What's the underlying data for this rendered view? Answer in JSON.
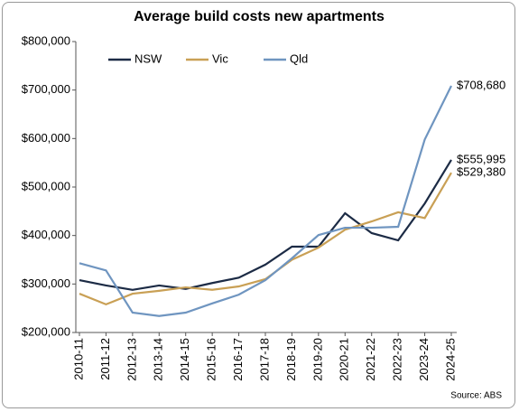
{
  "chart_data": {
    "type": "line",
    "title": "Average build costs new apartments",
    "categories": [
      "2010-11",
      "2011-12",
      "2012-13",
      "2013-14",
      "2014-15",
      "2015-16",
      "2016-17",
      "2017-18",
      "2018-19",
      "2019-20",
      "2020-21",
      "2021-22",
      "2022-23",
      "2023-24",
      "2024-25"
    ],
    "series": [
      {
        "name": "NSW",
        "color": "#1c2b45",
        "values": [
          308000,
          297000,
          288000,
          297000,
          290000,
          302000,
          313000,
          340000,
          377000,
          377000,
          446000,
          405000,
          390000,
          466000,
          555995
        ],
        "value_labels": [
          null,
          null,
          null,
          null,
          null,
          null,
          null,
          null,
          null,
          null,
          null,
          null,
          null,
          null,
          "$555,995"
        ]
      },
      {
        "name": "Vic",
        "color": "#c9a055",
        "values": [
          280000,
          258000,
          280000,
          286000,
          293000,
          288000,
          295000,
          310000,
          350000,
          375000,
          412000,
          429000,
          448000,
          436000,
          529380
        ],
        "value_labels": [
          null,
          null,
          null,
          null,
          null,
          null,
          null,
          null,
          null,
          null,
          null,
          null,
          null,
          null,
          "$529,380"
        ]
      },
      {
        "name": "Qld",
        "color": "#6f95c0",
        "values": [
          343000,
          328000,
          241000,
          234000,
          241000,
          260000,
          278000,
          308000,
          353000,
          401000,
          416000,
          416000,
          418000,
          598000,
          708680
        ],
        "value_labels": [
          null,
          null,
          null,
          null,
          null,
          null,
          null,
          null,
          null,
          null,
          null,
          null,
          null,
          null,
          "$708,680"
        ]
      }
    ],
    "ylim": [
      200000,
      800000
    ],
    "yticks": [
      {
        "value": 200000,
        "label": "$200,000"
      },
      {
        "value": 300000,
        "label": "$300,000"
      },
      {
        "value": 400000,
        "label": "$400,000"
      },
      {
        "value": 500000,
        "label": "$500,000"
      },
      {
        "value": 600000,
        "label": "$600,000"
      },
      {
        "value": 700000,
        "label": "$700,000"
      },
      {
        "value": 800000,
        "label": "$800,000"
      }
    ],
    "legend": "top",
    "grid": false,
    "source": "Source: ABS"
  }
}
